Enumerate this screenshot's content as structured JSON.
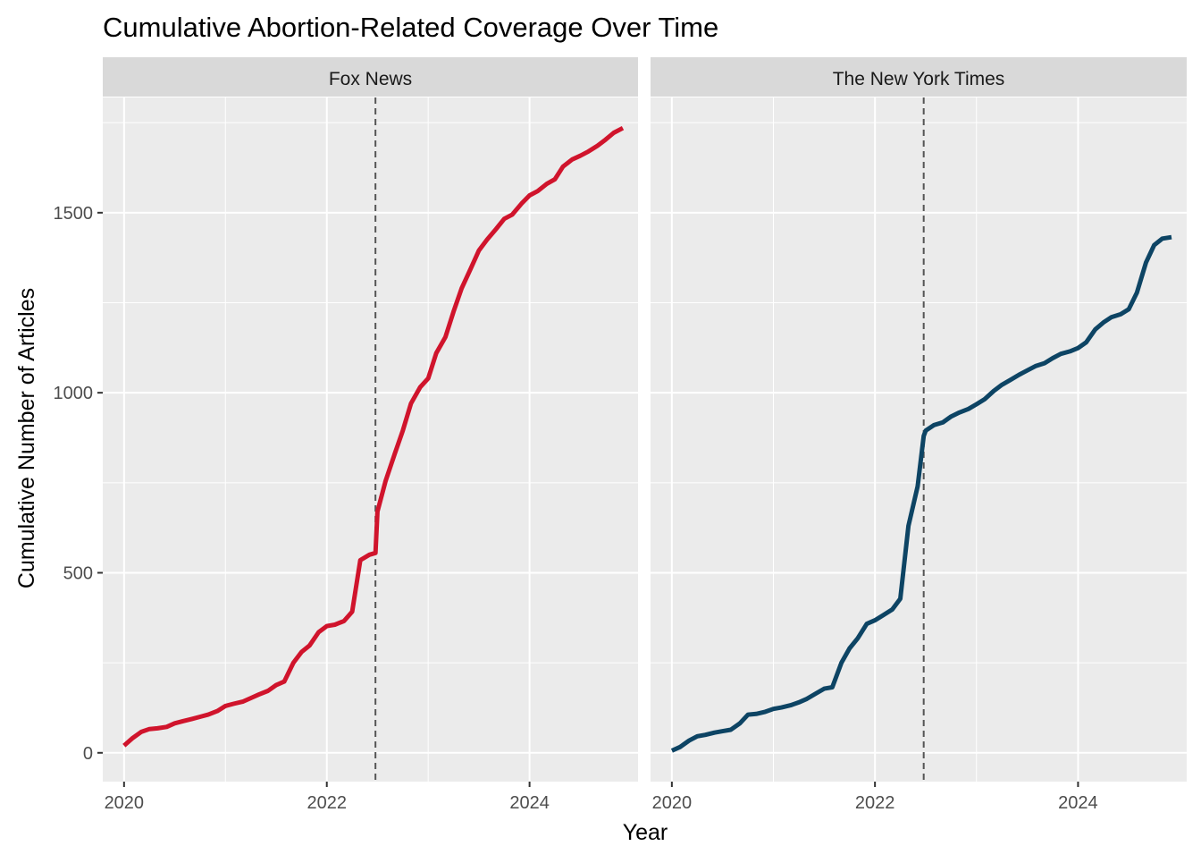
{
  "chart_data": {
    "type": "line",
    "title": "Cumulative Abortion-Related Coverage Over Time",
    "xlabel": "Year",
    "ylabel": "Cumulative Number of Articles",
    "xlim": [
      2019.79,
      2025.07
    ],
    "ylim": [
      -80,
      1820
    ],
    "x_ticks": [
      2020,
      2022,
      2024
    ],
    "x_tick_labels": [
      "2020",
      "2022",
      "2024"
    ],
    "y_ticks": [
      0,
      500,
      1000,
      1500
    ],
    "y_tick_labels": [
      "0",
      "500",
      "1000",
      "1500"
    ],
    "y_minor_ticks": [
      250,
      750,
      1250,
      1750
    ],
    "x_minor_ticks": [
      2021,
      2023
    ],
    "grid": true,
    "reference_line": {
      "x": 2022.48,
      "style": "dashed",
      "color": "#555555"
    },
    "panels": [
      {
        "strip_label": "Fox News",
        "color": "#D0142C",
        "series": {
          "x": [
            2020.0,
            2020.08,
            2020.17,
            2020.25,
            2020.33,
            2020.42,
            2020.5,
            2020.58,
            2020.67,
            2020.75,
            2020.83,
            2020.92,
            2021.0,
            2021.08,
            2021.17,
            2021.25,
            2021.33,
            2021.42,
            2021.5,
            2021.58,
            2021.67,
            2021.75,
            2021.83,
            2021.92,
            2022.0,
            2022.08,
            2022.17,
            2022.25,
            2022.33,
            2022.42,
            2022.48,
            2022.5,
            2022.58,
            2022.67,
            2022.75,
            2022.83,
            2022.92,
            2023.0,
            2023.08,
            2023.17,
            2023.25,
            2023.33,
            2023.42,
            2023.5,
            2023.58,
            2023.67,
            2023.75,
            2023.83,
            2023.92,
            2024.0,
            2024.08,
            2024.17,
            2024.25,
            2024.33,
            2024.42,
            2024.5,
            2024.58,
            2024.67,
            2024.75,
            2024.83,
            2024.92
          ],
          "y": [
            20,
            40,
            58,
            66,
            68,
            72,
            82,
            88,
            94,
            100,
            106,
            116,
            130,
            136,
            142,
            152,
            162,
            172,
            188,
            198,
            250,
            280,
            298,
            335,
            352,
            356,
            366,
            392,
            535,
            550,
            555,
            670,
            755,
            830,
            895,
            970,
            1015,
            1040,
            1110,
            1155,
            1225,
            1290,
            1345,
            1395,
            1425,
            1455,
            1483,
            1495,
            1525,
            1548,
            1560,
            1580,
            1593,
            1628,
            1648,
            1658,
            1670,
            1686,
            1703,
            1722,
            1735
          ]
        }
      },
      {
        "strip_label": "The New York Times",
        "color": "#0D4464",
        "series": {
          "x": [
            2020.0,
            2020.08,
            2020.17,
            2020.25,
            2020.33,
            2020.42,
            2020.5,
            2020.58,
            2020.67,
            2020.75,
            2020.83,
            2020.92,
            2021.0,
            2021.08,
            2021.17,
            2021.25,
            2021.33,
            2021.42,
            2021.5,
            2021.58,
            2021.67,
            2021.75,
            2021.83,
            2021.92,
            2022.0,
            2022.08,
            2022.17,
            2022.25,
            2022.33,
            2022.42,
            2022.48,
            2022.5,
            2022.58,
            2022.67,
            2022.75,
            2022.83,
            2022.92,
            2023.0,
            2023.08,
            2023.17,
            2023.25,
            2023.33,
            2023.42,
            2023.5,
            2023.58,
            2023.67,
            2023.75,
            2023.83,
            2023.92,
            2024.0,
            2024.08,
            2024.17,
            2024.25,
            2024.33,
            2024.42,
            2024.5,
            2024.58,
            2024.67,
            2024.75,
            2024.83,
            2024.92
          ],
          "y": [
            6,
            16,
            34,
            46,
            50,
            56,
            60,
            64,
            82,
            106,
            108,
            114,
            122,
            126,
            132,
            140,
            150,
            165,
            178,
            182,
            250,
            290,
            318,
            358,
            368,
            382,
            398,
            428,
            630,
            740,
            880,
            895,
            910,
            918,
            934,
            945,
            955,
            968,
            982,
            1005,
            1022,
            1035,
            1050,
            1062,
            1074,
            1082,
            1096,
            1108,
            1115,
            1124,
            1140,
            1176,
            1195,
            1210,
            1218,
            1232,
            1278,
            1362,
            1410,
            1428,
            1432
          ]
        }
      }
    ]
  }
}
